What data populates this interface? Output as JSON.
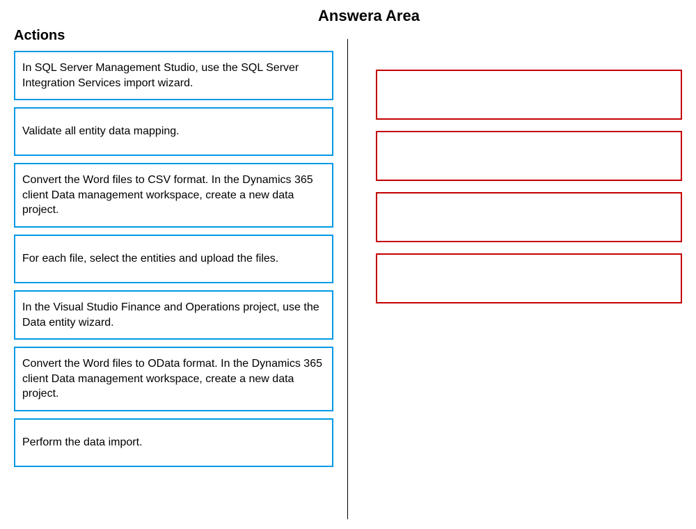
{
  "main_title": "Answera Area",
  "actions": {
    "heading": "Actions",
    "items": [
      {
        "text": "In SQL Server Management Studio, use the SQL Server Integration Services import wizard."
      },
      {
        "text": "Validate all entity data mapping."
      },
      {
        "text": "Convert the Word files to CSV format. In the Dynamics 365 client Data management workspace, create a new data project."
      },
      {
        "text": "For each file, select the entities and upload the files."
      },
      {
        "text": "In the Visual Studio Finance and Operations project, use the Data entity wizard."
      },
      {
        "text": "Convert the Word files to OData format. In the Dynamics 365 client Data management workspace, create a new data project."
      },
      {
        "text": "Perform the data import."
      }
    ],
    "box_border_color": "#0099e5",
    "box_min_height": 70
  },
  "answer_area": {
    "slot_count": 4,
    "slot_border_color": "#c40000",
    "slot_min_height": 72
  },
  "style": {
    "background_color": "#ffffff",
    "title_fontsize": 22,
    "section_title_fontsize": 20,
    "body_fontsize": 16,
    "divider_color": "#000000"
  }
}
